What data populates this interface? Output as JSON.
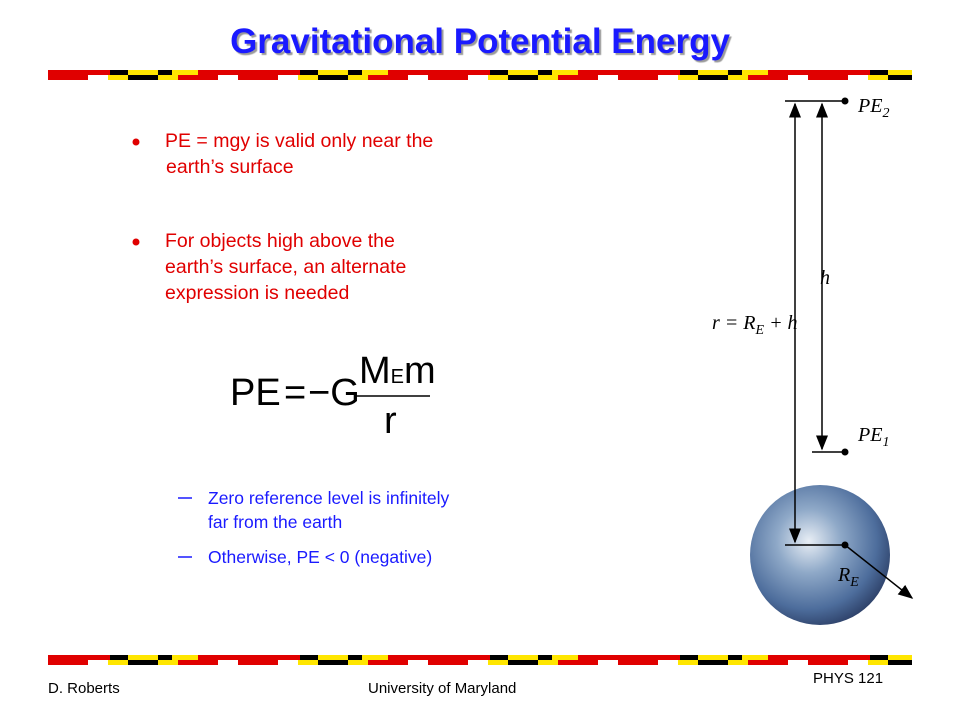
{
  "title": "Gravitational Potential Energy",
  "bullets": [
    {
      "lines": [
        "PE = mgy is valid only near the",
        "earth’s surface"
      ]
    },
    {
      "lines": [
        "For objects high above the",
        "earth’s surface, an alternate",
        "expression is needed"
      ]
    }
  ],
  "formula": {
    "lhs": "PE",
    "equals": "=",
    "coefficient": "−G",
    "numerator": {
      "base": "M",
      "sub": "E",
      "rest": "m"
    },
    "denominator": "r"
  },
  "sub_bullets": [
    {
      "lines": [
        "Zero reference level is infinitely",
        "far from the earth"
      ]
    },
    {
      "lines": [
        "Otherwise, PE < 0 (negative)"
      ]
    }
  ],
  "diagram": {
    "pe2": {
      "base": "PE",
      "sub": "2"
    },
    "h": "h",
    "r": {
      "base": "r = R",
      "sub": "E",
      "rest": " + h"
    },
    "pe1": {
      "base": "PE",
      "sub": "1"
    },
    "re": {
      "base": "R",
      "sub": "E"
    }
  },
  "footer": {
    "author": "D. Roberts",
    "institution": "University of Maryland",
    "course": "PHYS 121"
  }
}
